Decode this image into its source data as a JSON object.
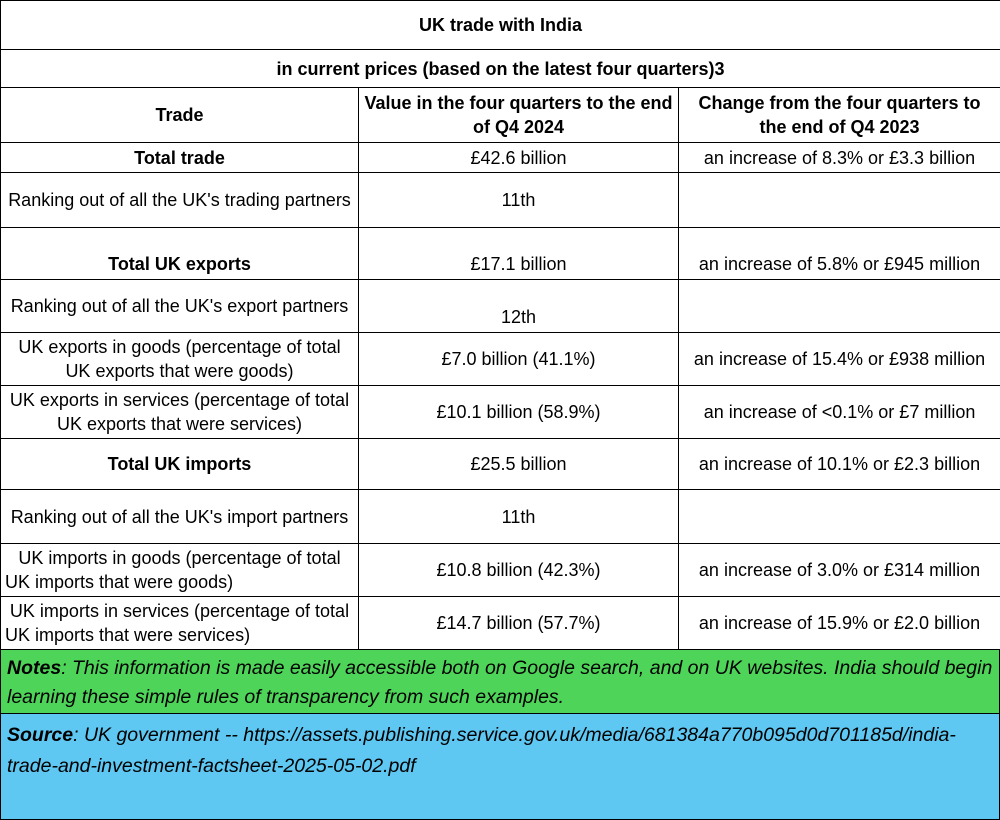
{
  "title": "UK trade with India",
  "subtitle": "in current prices (based on the latest four quarters)3",
  "headers": {
    "trade": "Trade",
    "value": "Value in the four quarters to the end of Q4 2024",
    "change": "Change from the four quarters to the end of Q4 2023"
  },
  "rows": [
    {
      "label": "Total trade",
      "value": "£42.6 billion",
      "change": "an increase of 8.3% or £3.3 billion"
    },
    {
      "label": "Ranking out of all the UK's trading partners",
      "value": "11th",
      "change": ""
    },
    {
      "label": "Total UK exports",
      "value": "£17.1 billion",
      "change": "an increase of 5.8% or £945 million"
    },
    {
      "label": "Ranking out of all the UK's export partners",
      "value": "12th",
      "change": ""
    },
    {
      "label": "UK exports in goods (percentage of total UK exports that were goods)",
      "value": "£7.0 billion (41.1%)",
      "change": "an increase of 15.4% or £938 million"
    },
    {
      "label": "UK exports in services (percentage of total UK exports that were services)",
      "value": "£10.1 billion (58.9%)",
      "change": "an increase of <0.1% or £7 million"
    },
    {
      "label": "Total UK imports",
      "value": "£25.5 billion",
      "change": "an increase of 10.1% or £2.3 billion"
    },
    {
      "label": "Ranking out of all the UK's import partners",
      "value": "11th",
      "change": ""
    },
    {
      "label": "UK imports in goods (percentage of total UK imports that were goods)",
      "value": "£10.8 billion (42.3%)",
      "change": "an increase of 3.0% or £314 million"
    },
    {
      "label": "UK imports in services (percentage of total UK imports that were services)",
      "value": "£14.7 billion (57.7%)",
      "change": "an increase of 15.9% or £2.0 billion"
    }
  ],
  "notes": {
    "label": "Notes",
    "text": ":  This information is made easily accessible both on Google search, and on UK websites.  India should begin learning these simple rules of transparency from such examples."
  },
  "source": {
    "label": "Source",
    "text": ":  UK government -- https://assets.publishing.service.gov.uk/media/681384a770b095d0d701185d/india-trade-and-investment-factsheet-2025-05-02.pdf"
  }
}
